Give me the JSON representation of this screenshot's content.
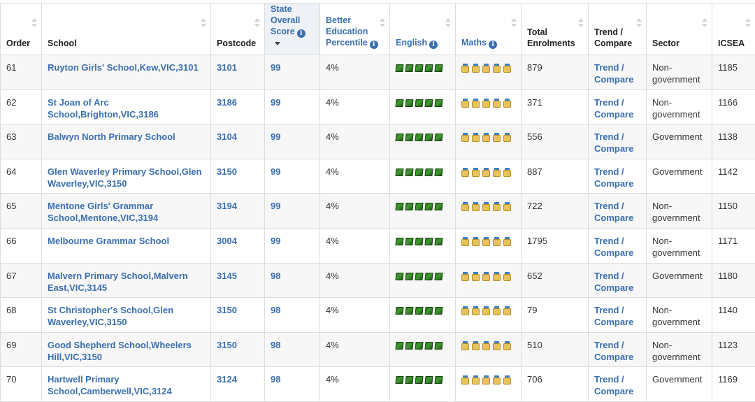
{
  "headers": [
    {
      "label": "Order"
    },
    {
      "label": "School"
    },
    {
      "label": "Postcode"
    },
    {
      "label": "State Overall Score"
    },
    {
      "label": "Better Education Percentile"
    },
    {
      "label": "English"
    },
    {
      "label": "Maths"
    },
    {
      "label": "Total Enrolments"
    },
    {
      "label": "Trend / Compare"
    },
    {
      "label": "Sector"
    },
    {
      "label": "ICSEA"
    }
  ],
  "info_glyph": "i",
  "icons": {
    "english": "green-book-icon",
    "maths": "gold-medal-icon",
    "english_count": 5,
    "maths_count": 5
  },
  "colors": {
    "link": "#3a6fb0",
    "stripe": "#f7f7f7",
    "border": "#dddddd",
    "sorted_header_bg": "#eef1f6"
  },
  "rows": [
    {
      "order": "61",
      "school": "Ruyton Girls' School,Kew,VIC,3101",
      "postcode": "3101",
      "score": "99",
      "percentile": "4%",
      "enrolments": "879",
      "trend": "Trend / Compare",
      "sector": "Non-government",
      "icsea": "1185"
    },
    {
      "order": "62",
      "school": "St Joan of Arc School,Brighton,VIC,3186",
      "postcode": "3186",
      "score": "99",
      "percentile": "4%",
      "enrolments": "371",
      "trend": "Trend / Compare",
      "sector": "Non-government",
      "icsea": "1166"
    },
    {
      "order": "63",
      "school": "Balwyn North Primary School",
      "postcode": "3104",
      "score": "99",
      "percentile": "4%",
      "enrolments": "556",
      "trend": "Trend / Compare",
      "sector": "Government",
      "icsea": "1138"
    },
    {
      "order": "64",
      "school": "Glen Waverley Primary School,Glen Waverley,VIC,3150",
      "postcode": "3150",
      "score": "99",
      "percentile": "4%",
      "enrolments": "887",
      "trend": "Trend / Compare",
      "sector": "Government",
      "icsea": "1142"
    },
    {
      "order": "65",
      "school": "Mentone Girls' Grammar School,Mentone,VIC,3194",
      "postcode": "3194",
      "score": "99",
      "percentile": "4%",
      "enrolments": "722",
      "trend": "Trend / Compare",
      "sector": "Non-government",
      "icsea": "1150"
    },
    {
      "order": "66",
      "school": "Melbourne Grammar School",
      "postcode": "3004",
      "score": "99",
      "percentile": "4%",
      "enrolments": "1795",
      "trend": "Trend / Compare",
      "sector": "Non-government",
      "icsea": "1171"
    },
    {
      "order": "67",
      "school": "Malvern Primary School,Malvern East,VIC,3145",
      "postcode": "3145",
      "score": "98",
      "percentile": "4%",
      "enrolments": "652",
      "trend": "Trend / Compare",
      "sector": "Government",
      "icsea": "1180"
    },
    {
      "order": "68",
      "school": "St Christopher's School,Glen Waverley,VIC,3150",
      "postcode": "3150",
      "score": "98",
      "percentile": "4%",
      "enrolments": "79",
      "trend": "Trend / Compare",
      "sector": "Non-government",
      "icsea": "1140"
    },
    {
      "order": "69",
      "school": "Good Shepherd School,Wheelers Hill,VIC,3150",
      "postcode": "3150",
      "score": "98",
      "percentile": "4%",
      "enrolments": "510",
      "trend": "Trend / Compare",
      "sector": "Non-government",
      "icsea": "1123"
    },
    {
      "order": "70",
      "school": "Hartwell Primary School,Camberwell,VIC,3124",
      "postcode": "3124",
      "score": "98",
      "percentile": "4%",
      "enrolments": "706",
      "trend": "Trend / Compare",
      "sector": "Government",
      "icsea": "1169"
    }
  ]
}
